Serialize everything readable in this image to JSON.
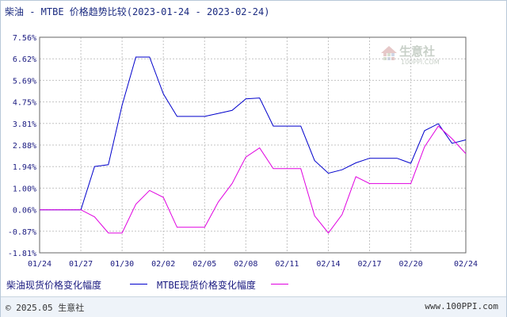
{
  "title": "柴油 - MTBE 价格趋势比较(2023-01-24 - 2023-02-24)",
  "watermark": {
    "name": "生意社",
    "url": "100PPI.COM"
  },
  "footer": {
    "left": "© 2025.05 生意社",
    "right": "www.100PPI.com"
  },
  "colors": {
    "series1": "#0000cc",
    "series2": "#e000e0",
    "grid": "#c4c4c4",
    "axis": "#666666",
    "text": "#1a1a80"
  },
  "chart_data": {
    "type": "line",
    "title": "柴油 - MTBE 价格趋势比较(2023-01-24 - 2023-02-24)",
    "x_ticks": [
      "01/24",
      "01/27",
      "01/30",
      "02/02",
      "02/05",
      "02/08",
      "02/11",
      "02/14",
      "02/17",
      "02/20",
      "02/24"
    ],
    "y_ticks": [
      "7.56%",
      "6.62%",
      "5.69%",
      "4.75%",
      "3.81%",
      "2.88%",
      "1.94%",
      "1.00%",
      "0.06%",
      "-0.87%",
      "-1.81%"
    ],
    "ylim": [
      -1.81,
      7.56
    ],
    "grid": true,
    "legend_position": "bottom",
    "series": [
      {
        "name": "柴油现货价格变化幅度",
        "color": "#0000cc",
        "points": [
          [
            "01/24",
            0.06
          ],
          [
            "01/27",
            0.06
          ],
          [
            "01/28",
            1.94
          ],
          [
            "01/29",
            2.02
          ],
          [
            "01/30",
            4.6
          ],
          [
            "01/31",
            6.7
          ],
          [
            "02/01",
            6.7
          ],
          [
            "02/02",
            5.1
          ],
          [
            "02/03",
            4.12
          ],
          [
            "02/04",
            4.12
          ],
          [
            "02/05",
            4.12
          ],
          [
            "02/06",
            4.25
          ],
          [
            "02/07",
            4.38
          ],
          [
            "02/08",
            4.88
          ],
          [
            "02/09",
            4.92
          ],
          [
            "02/10",
            3.7
          ],
          [
            "02/11",
            3.7
          ],
          [
            "02/12",
            3.7
          ],
          [
            "02/13",
            2.2
          ],
          [
            "02/14",
            1.65
          ],
          [
            "02/15",
            1.8
          ],
          [
            "02/16",
            2.1
          ],
          [
            "02/17",
            2.3
          ],
          [
            "02/18",
            2.3
          ],
          [
            "02/19",
            2.3
          ],
          [
            "02/20",
            2.08
          ],
          [
            "02/21",
            3.5
          ],
          [
            "02/22",
            3.8
          ],
          [
            "02/23",
            2.95
          ],
          [
            "02/24",
            3.1
          ]
        ]
      },
      {
        "name": "MTBE现货价格变化幅度",
        "color": "#e000e0",
        "points": [
          [
            "01/24",
            0.06
          ],
          [
            "01/27",
            0.06
          ],
          [
            "01/28",
            -0.25
          ],
          [
            "01/29",
            -0.95
          ],
          [
            "01/30",
            -0.95
          ],
          [
            "01/31",
            0.3
          ],
          [
            "02/01",
            0.9
          ],
          [
            "02/02",
            0.6
          ],
          [
            "02/03",
            -0.7
          ],
          [
            "02/04",
            -0.7
          ],
          [
            "02/05",
            -0.7
          ],
          [
            "02/06",
            0.4
          ],
          [
            "02/07",
            1.2
          ],
          [
            "02/08",
            2.35
          ],
          [
            "02/09",
            2.75
          ],
          [
            "02/10",
            1.85
          ],
          [
            "02/11",
            1.85
          ],
          [
            "02/12",
            1.85
          ],
          [
            "02/13",
            -0.2
          ],
          [
            "02/14",
            -0.95
          ],
          [
            "02/15",
            -0.15
          ],
          [
            "02/16",
            1.5
          ],
          [
            "02/17",
            1.2
          ],
          [
            "02/18",
            1.2
          ],
          [
            "02/19",
            1.2
          ],
          [
            "02/20",
            1.2
          ],
          [
            "02/21",
            2.8
          ],
          [
            "02/22",
            3.7
          ],
          [
            "02/23",
            3.15
          ],
          [
            "02/24",
            2.5
          ]
        ]
      }
    ]
  }
}
